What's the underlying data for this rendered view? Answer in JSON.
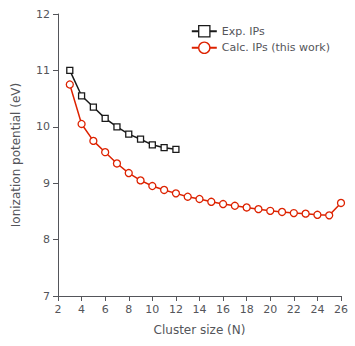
{
  "chart_data": {
    "type": "line",
    "xlabel": "Cluster size (N)",
    "ylabel": "Ionization potential (eV)",
    "xlim": [
      2,
      26
    ],
    "ylim": [
      7,
      12
    ],
    "xticks": [
      2,
      4,
      6,
      8,
      10,
      12,
      14,
      16,
      18,
      20,
      22,
      24,
      26
    ],
    "yticks": [
      7,
      8,
      9,
      10,
      11,
      12
    ],
    "grid": false,
    "legend": "upper right",
    "series": [
      {
        "name": "Exp. IPs",
        "color": "#1a1a1a",
        "marker": "square",
        "x": [
          3,
          4,
          5,
          6,
          7,
          8,
          9,
          10,
          11,
          12
        ],
        "values": [
          11.0,
          10.55,
          10.35,
          10.15,
          10.0,
          9.87,
          9.78,
          9.68,
          9.63,
          9.6
        ]
      },
      {
        "name": "Calc. IPs (this work)",
        "color": "#dd2200",
        "marker": "circle",
        "x": [
          3,
          4,
          5,
          6,
          7,
          8,
          9,
          10,
          11,
          12,
          13,
          14,
          15,
          16,
          17,
          18,
          19,
          20,
          21,
          22,
          23,
          24,
          25,
          26
        ],
        "values": [
          10.75,
          10.05,
          9.75,
          9.55,
          9.35,
          9.18,
          9.05,
          8.95,
          8.88,
          8.82,
          8.76,
          8.72,
          8.67,
          8.63,
          8.6,
          8.57,
          8.54,
          8.51,
          8.49,
          8.47,
          8.46,
          8.44,
          8.43,
          8.65
        ]
      }
    ]
  }
}
